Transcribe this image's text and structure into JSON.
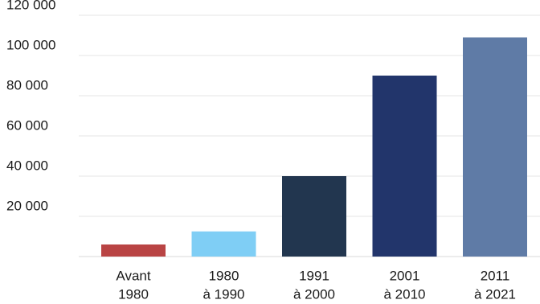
{
  "chart_data": {
    "type": "bar",
    "categories": [
      [
        "Avant",
        "1980"
      ],
      [
        "1980",
        "à 1990"
      ],
      [
        "1991",
        "à 2000"
      ],
      [
        "2001",
        "à 2010"
      ],
      [
        "2011",
        "à 2021"
      ]
    ],
    "values": [
      6000,
      12500,
      40000,
      90000,
      109000
    ],
    "colors": [
      "#b94444",
      "#7fcef5",
      "#22364f",
      "#22356b",
      "#5f7ba6"
    ],
    "ylim": [
      0,
      120000
    ],
    "yticks": [
      20000,
      40000,
      60000,
      80000,
      100000,
      120000
    ],
    "ytick_labels": [
      "20 000",
      "40 000",
      "60 000",
      "80 000",
      "100 000",
      "120 000"
    ],
    "grid": true,
    "title": "",
    "xlabel": "",
    "ylabel": ""
  }
}
